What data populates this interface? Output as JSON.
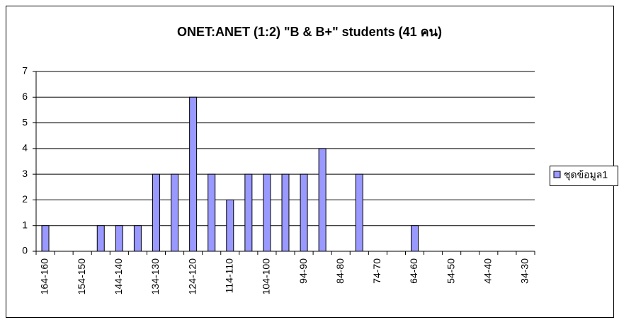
{
  "chart_data": {
    "type": "bar",
    "title": "ONET:ANET (1:2) \"B & B+\" students (41 คน)",
    "categories": [
      "164-160",
      null,
      "154-150",
      null,
      "144-140",
      null,
      "134-130",
      null,
      "124-120",
      null,
      "114-110",
      null,
      "104-100",
      null,
      "94-90",
      null,
      "84-80",
      null,
      "74-70",
      null,
      "64-60",
      null,
      "54-50",
      null,
      "44-40",
      null,
      "34-30"
    ],
    "series": [
      {
        "name": "ชุดข้อมูล1",
        "color": "#9999ff",
        "values": [
          1,
          0,
          0,
          1,
          1,
          1,
          3,
          3,
          6,
          3,
          2,
          3,
          3,
          3,
          3,
          4,
          0,
          3,
          0,
          0,
          1,
          0,
          0,
          0,
          0,
          0,
          0
        ]
      }
    ],
    "ylim": [
      0,
      7
    ],
    "yticks": [
      0,
      1,
      2,
      3,
      4,
      5,
      6,
      7
    ],
    "grid": true,
    "legend": "right"
  }
}
